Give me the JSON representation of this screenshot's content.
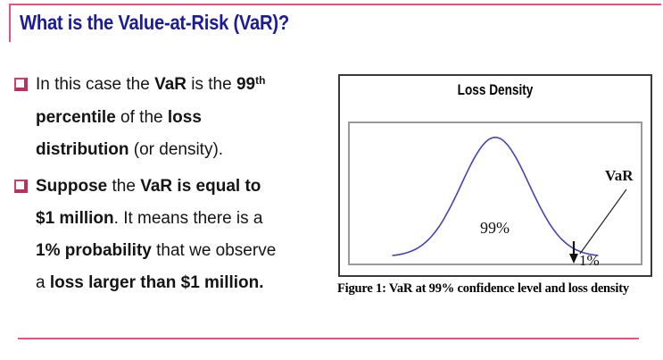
{
  "slide": {
    "title": "What is the Value-at-Risk (VaR)?"
  },
  "bullets": [
    {
      "lines": [
        {
          "segments": [
            {
              "t": "In this case the ",
              "b": false
            },
            {
              "t": "VaR",
              "b": true
            },
            {
              "t": " is the ",
              "b": false
            },
            {
              "t": "99",
              "b": true
            },
            {
              "t": "th",
              "b": true,
              "sup": true
            }
          ]
        },
        {
          "segments": [
            {
              "t": "percentile",
              "b": true
            },
            {
              "t": " of the ",
              "b": false
            },
            {
              "t": "loss",
              "b": true
            }
          ]
        },
        {
          "segments": [
            {
              "t": "distribution",
              "b": true
            },
            {
              "t": " (or density).",
              "b": false
            }
          ]
        }
      ]
    },
    {
      "lines": [
        {
          "segments": [
            {
              "t": "Suppose",
              "b": true
            },
            {
              "t": " the ",
              "b": false
            },
            {
              "t": "VaR is equal to",
              "b": true
            }
          ]
        },
        {
          "segments": [
            {
              "t": "$1 million",
              "b": true
            },
            {
              "t": ". It means there is a",
              "b": false
            }
          ]
        },
        {
          "segments": [
            {
              "t": "1% probability",
              "b": true
            },
            {
              "t": " that we observe",
              "b": false
            }
          ]
        },
        {
          "segments": [
            {
              "t": "a ",
              "b": false
            },
            {
              "t": "loss larger than $1 million.",
              "b": true
            }
          ]
        }
      ]
    }
  ],
  "chart_data": {
    "type": "area",
    "title": "Loss Density",
    "xlabel": "",
    "ylabel": "",
    "axes_visible": false,
    "grid": false,
    "series": [
      {
        "name": "loss-density-curve",
        "shape": "gaussian",
        "peak_x_pct": 50,
        "sigma_pct": 11.5,
        "x_start_pct": 15,
        "x_end_pct": 85,
        "baseline_y_pct": 94,
        "peak_y_pct": 11
      }
    ],
    "annotations": [
      {
        "label": "99%"
      },
      {
        "label": "VaR"
      },
      {
        "label": "1%"
      }
    ],
    "caption": "Figure 1: VaR at 99% confidence level and loss density"
  },
  "colors": {
    "accent_pink": "#e8537e",
    "title_blue": "#1c1c99",
    "curve_blue": "#4343b2",
    "bullet_pink": "#d83a6a",
    "figure_border": "#3a3a3a",
    "plot_border": "#999999"
  }
}
